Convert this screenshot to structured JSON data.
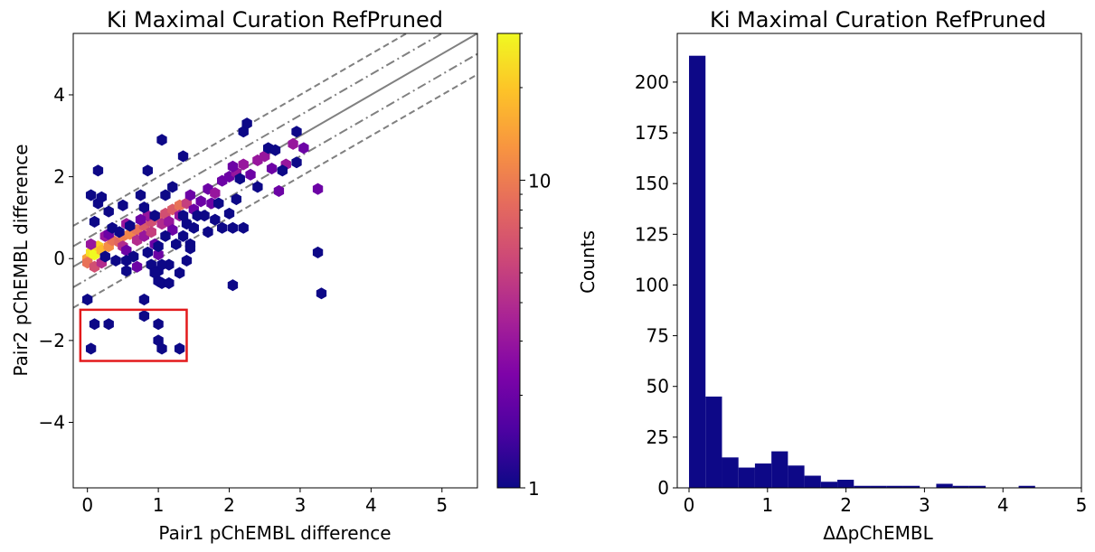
{
  "chart_data": [
    {
      "type": "hexbin",
      "title": "Ki Maximal Curation RefPruned",
      "xlabel": "Pair1 pChEMBL difference",
      "ylabel": "Pair2 pChEMBL difference",
      "xlim": [
        -0.2,
        5.5
      ],
      "ylim": [
        -5.6,
        5.5
      ],
      "xticks": [
        0,
        1,
        2,
        3,
        4,
        5
      ],
      "xtick_labels": [
        "0",
        "1",
        "2",
        "3",
        "4",
        "5"
      ],
      "yticks": [
        -4,
        -2,
        0,
        2,
        4
      ],
      "ytick_labels": [
        "−4",
        "−2",
        "0",
        "2",
        "4"
      ],
      "grid": false,
      "colormap": "plasma",
      "colorbar": {
        "label": "Counts",
        "scale": "log",
        "range": [
          1,
          30
        ],
        "ticks": [
          1,
          10
        ],
        "tick_labels": [
          "1",
          "10"
        ]
      },
      "reference_lines": [
        {
          "style": "solid",
          "color": "#808080",
          "slope": 1,
          "intercept": 0
        },
        {
          "style": "dashdot",
          "color": "#808080",
          "slope": 1,
          "intercept": 0.5
        },
        {
          "style": "dashdot",
          "color": "#808080",
          "slope": 1,
          "intercept": -0.5
        },
        {
          "style": "dashed",
          "color": "#808080",
          "slope": 1,
          "intercept": 1.0
        },
        {
          "style": "dashed",
          "color": "#808080",
          "slope": 1,
          "intercept": -1.0
        }
      ],
      "highlight_box": {
        "color": "#e31a1c",
        "x_range": [
          -0.1,
          1.4
        ],
        "y_range": [
          -2.5,
          -1.25
        ]
      },
      "bins": [
        {
          "x": 0.0,
          "y": 0.0,
          "count": 14
        },
        {
          "x": 0.05,
          "y": 0.15,
          "count": 25
        },
        {
          "x": 0.1,
          "y": 0.1,
          "count": 30
        },
        {
          "x": 0.15,
          "y": 0.3,
          "count": 22
        },
        {
          "x": 0.2,
          "y": 0.2,
          "count": 18
        },
        {
          "x": 0.3,
          "y": 0.3,
          "count": 12
        },
        {
          "x": 0.35,
          "y": 0.45,
          "count": 9
        },
        {
          "x": 0.45,
          "y": 0.4,
          "count": 8
        },
        {
          "x": 0.5,
          "y": 0.55,
          "count": 10
        },
        {
          "x": 0.6,
          "y": 0.6,
          "count": 11
        },
        {
          "x": 0.7,
          "y": 0.7,
          "count": 9
        },
        {
          "x": 0.8,
          "y": 0.8,
          "count": 7
        },
        {
          "x": 0.9,
          "y": 0.9,
          "count": 6
        },
        {
          "x": 1.0,
          "y": 1.0,
          "count": 8
        },
        {
          "x": 1.1,
          "y": 1.1,
          "count": 6
        },
        {
          "x": 1.2,
          "y": 1.2,
          "count": 7
        },
        {
          "x": 1.3,
          "y": 1.3,
          "count": 9
        },
        {
          "x": 1.4,
          "y": 1.35,
          "count": 5
        },
        {
          "x": 0.0,
          "y": -0.1,
          "count": 9
        },
        {
          "x": 0.1,
          "y": -0.2,
          "count": 6
        },
        {
          "x": 0.2,
          "y": -0.1,
          "count": 4
        },
        {
          "x": 0.05,
          "y": 0.35,
          "count": 3
        },
        {
          "x": 0.25,
          "y": 0.55,
          "count": 3
        },
        {
          "x": 0.5,
          "y": 0.3,
          "count": 4
        },
        {
          "x": 0.55,
          "y": 0.85,
          "count": 3
        },
        {
          "x": 0.7,
          "y": 0.45,
          "count": 4
        },
        {
          "x": 0.8,
          "y": 0.55,
          "count": 3
        },
        {
          "x": 0.9,
          "y": 0.65,
          "count": 5
        },
        {
          "x": 0.85,
          "y": 1.05,
          "count": 3
        },
        {
          "x": 1.05,
          "y": 0.85,
          "count": 4
        },
        {
          "x": 1.15,
          "y": 0.9,
          "count": 3
        },
        {
          "x": 1.3,
          "y": 1.05,
          "count": 3
        },
        {
          "x": 1.5,
          "y": 1.2,
          "count": 2
        },
        {
          "x": 1.7,
          "y": 1.7,
          "count": 2
        },
        {
          "x": 1.8,
          "y": 1.6,
          "count": 3
        },
        {
          "x": 1.9,
          "y": 1.9,
          "count": 2
        },
        {
          "x": 2.0,
          "y": 2.0,
          "count": 2
        },
        {
          "x": 2.1,
          "y": 2.1,
          "count": 3
        },
        {
          "x": 2.2,
          "y": 2.3,
          "count": 3
        },
        {
          "x": 2.4,
          "y": 2.4,
          "count": 3
        },
        {
          "x": 2.5,
          "y": 2.5,
          "count": 3
        },
        {
          "x": 2.6,
          "y": 2.2,
          "count": 2
        },
        {
          "x": 2.7,
          "y": 1.65,
          "count": 2
        },
        {
          "x": 2.8,
          "y": 2.3,
          "count": 3
        },
        {
          "x": 2.9,
          "y": 2.8,
          "count": 3
        },
        {
          "x": 3.05,
          "y": 2.7,
          "count": 2
        },
        {
          "x": 3.25,
          "y": 1.7,
          "count": 2
        },
        {
          "x": 0.3,
          "y": 0.6,
          "count": 2
        },
        {
          "x": 0.55,
          "y": 0.2,
          "count": 2
        },
        {
          "x": 0.7,
          "y": -0.2,
          "count": 2
        },
        {
          "x": 0.75,
          "y": 0.95,
          "count": 2
        },
        {
          "x": 0.95,
          "y": 0.35,
          "count": 2
        },
        {
          "x": 1.0,
          "y": 0.1,
          "count": 2
        },
        {
          "x": 1.2,
          "y": 0.7,
          "count": 2
        },
        {
          "x": 1.45,
          "y": 1.55,
          "count": 2
        },
        {
          "x": 1.6,
          "y": 1.4,
          "count": 2
        },
        {
          "x": 1.75,
          "y": 1.35,
          "count": 2
        },
        {
          "x": 2.05,
          "y": 2.25,
          "count": 2
        },
        {
          "x": 2.3,
          "y": 2.05,
          "count": 2
        },
        {
          "x": 0.1,
          "y": 0.9,
          "count": 1
        },
        {
          "x": 0.15,
          "y": 1.35,
          "count": 1
        },
        {
          "x": 0.2,
          "y": 1.5,
          "count": 1
        },
        {
          "x": 0.3,
          "y": 1.15,
          "count": 1
        },
        {
          "x": 0.35,
          "y": 0.75,
          "count": 1
        },
        {
          "x": 0.4,
          "y": -0.05,
          "count": 1
        },
        {
          "x": 0.45,
          "y": 0.65,
          "count": 1
        },
        {
          "x": 0.5,
          "y": 1.3,
          "count": 1
        },
        {
          "x": 0.55,
          "y": -0.05,
          "count": 1
        },
        {
          "x": 0.6,
          "y": 0.8,
          "count": 1
        },
        {
          "x": 0.65,
          "y": 0.05,
          "count": 1
        },
        {
          "x": 0.75,
          "y": 1.55,
          "count": 1
        },
        {
          "x": 0.8,
          "y": 1.25,
          "count": 1
        },
        {
          "x": 0.85,
          "y": 0.15,
          "count": 1
        },
        {
          "x": 0.9,
          "y": -0.15,
          "count": 1
        },
        {
          "x": 0.95,
          "y": 1.05,
          "count": 1
        },
        {
          "x": 1.0,
          "y": -0.3,
          "count": 1
        },
        {
          "x": 1.05,
          "y": -0.6,
          "count": 1
        },
        {
          "x": 1.1,
          "y": 0.55,
          "count": 1
        },
        {
          "x": 1.15,
          "y": -0.6,
          "count": 1
        },
        {
          "x": 1.25,
          "y": 0.35,
          "count": 1
        },
        {
          "x": 1.35,
          "y": 0.55,
          "count": 1
        },
        {
          "x": 1.35,
          "y": 1.05,
          "count": 1
        },
        {
          "x": 1.4,
          "y": 0.85,
          "count": 1
        },
        {
          "x": 1.45,
          "y": 0.35,
          "count": 1
        },
        {
          "x": 1.5,
          "y": 0.75,
          "count": 1
        },
        {
          "x": 1.55,
          "y": 1.05,
          "count": 1
        },
        {
          "x": 1.65,
          "y": 1.05,
          "count": 1
        },
        {
          "x": 1.7,
          "y": 0.65,
          "count": 1
        },
        {
          "x": 1.8,
          "y": 0.95,
          "count": 1
        },
        {
          "x": 1.85,
          "y": 1.35,
          "count": 1
        },
        {
          "x": 1.9,
          "y": 0.75,
          "count": 1
        },
        {
          "x": 2.0,
          "y": 1.1,
          "count": 1
        },
        {
          "x": 2.05,
          "y": 0.75,
          "count": 1
        },
        {
          "x": 2.1,
          "y": 1.45,
          "count": 1
        },
        {
          "x": 2.15,
          "y": 1.95,
          "count": 1
        },
        {
          "x": 2.2,
          "y": 0.75,
          "count": 1
        },
        {
          "x": 2.2,
          "y": 3.1,
          "count": 1
        },
        {
          "x": 2.25,
          "y": 3.3,
          "count": 1
        },
        {
          "x": 2.4,
          "y": 1.75,
          "count": 1
        },
        {
          "x": 2.55,
          "y": 2.7,
          "count": 1
        },
        {
          "x": 2.65,
          "y": 2.65,
          "count": 1
        },
        {
          "x": 2.75,
          "y": 2.15,
          "count": 1
        },
        {
          "x": 2.95,
          "y": 3.1,
          "count": 1
        },
        {
          "x": 2.95,
          "y": 2.35,
          "count": 1
        },
        {
          "x": 3.25,
          "y": 0.15,
          "count": 1
        },
        {
          "x": 3.3,
          "y": -0.85,
          "count": 1
        },
        {
          "x": 0.05,
          "y": 1.55,
          "count": 1
        },
        {
          "x": 0.15,
          "y": 2.15,
          "count": 1
        },
        {
          "x": 0.85,
          "y": 2.15,
          "count": 1
        },
        {
          "x": 1.05,
          "y": 2.9,
          "count": 1
        },
        {
          "x": 1.1,
          "y": 1.55,
          "count": 1
        },
        {
          "x": 1.2,
          "y": 1.75,
          "count": 1
        },
        {
          "x": 1.35,
          "y": 2.5,
          "count": 1
        },
        {
          "x": 1.15,
          "y": -0.15,
          "count": 1
        },
        {
          "x": 1.3,
          "y": -0.35,
          "count": 1
        },
        {
          "x": 1.05,
          "y": -0.15,
          "count": 1
        },
        {
          "x": 1.4,
          "y": -0.05,
          "count": 1
        },
        {
          "x": 1.45,
          "y": 0.25,
          "count": 1
        },
        {
          "x": 2.05,
          "y": -0.65,
          "count": 1
        },
        {
          "x": 1.0,
          "y": 0.3,
          "count": 1
        },
        {
          "x": 0.55,
          "y": -0.3,
          "count": 1
        },
        {
          "x": 0.25,
          "y": 0.05,
          "count": 1
        },
        {
          "x": 0.0,
          "y": -1.0,
          "count": 1
        },
        {
          "x": 0.05,
          "y": -2.2,
          "count": 1
        },
        {
          "x": 0.1,
          "y": -1.6,
          "count": 1
        },
        {
          "x": 0.3,
          "y": -1.6,
          "count": 1
        },
        {
          "x": 0.8,
          "y": -1.4,
          "count": 1
        },
        {
          "x": 0.8,
          "y": -1.0,
          "count": 1
        },
        {
          "x": 1.0,
          "y": -1.6,
          "count": 1
        },
        {
          "x": 1.0,
          "y": -2.0,
          "count": 1
        },
        {
          "x": 1.05,
          "y": -2.2,
          "count": 1
        },
        {
          "x": 1.3,
          "y": -2.2,
          "count": 1
        },
        {
          "x": 1.0,
          "y": -0.55,
          "count": 1
        },
        {
          "x": 0.95,
          "y": -0.35,
          "count": 1
        }
      ]
    },
    {
      "type": "histogram",
      "title": "Ki Maximal Curation RefPruned",
      "xlabel": "ΔΔpChEMBL",
      "ylabel": "",
      "xlim": [
        -0.15,
        5
      ],
      "ylim": [
        0,
        224
      ],
      "xticks": [
        0,
        1,
        2,
        3,
        4,
        5
      ],
      "xtick_labels": [
        "0",
        "1",
        "2",
        "3",
        "4",
        "5"
      ],
      "yticks": [
        0,
        25,
        50,
        75,
        100,
        125,
        150,
        175,
        200
      ],
      "ytick_labels": [
        "0",
        "25",
        "50",
        "75",
        "100",
        "125",
        "150",
        "175",
        "200"
      ],
      "color": "#0d0887",
      "bin_width": 0.21,
      "bin_start": 0.0,
      "values": [
        213,
        45,
        15,
        10,
        12,
        18,
        11,
        6,
        3,
        4,
        1,
        1,
        1,
        1,
        0,
        2,
        1,
        1,
        0,
        0,
        1
      ]
    }
  ]
}
